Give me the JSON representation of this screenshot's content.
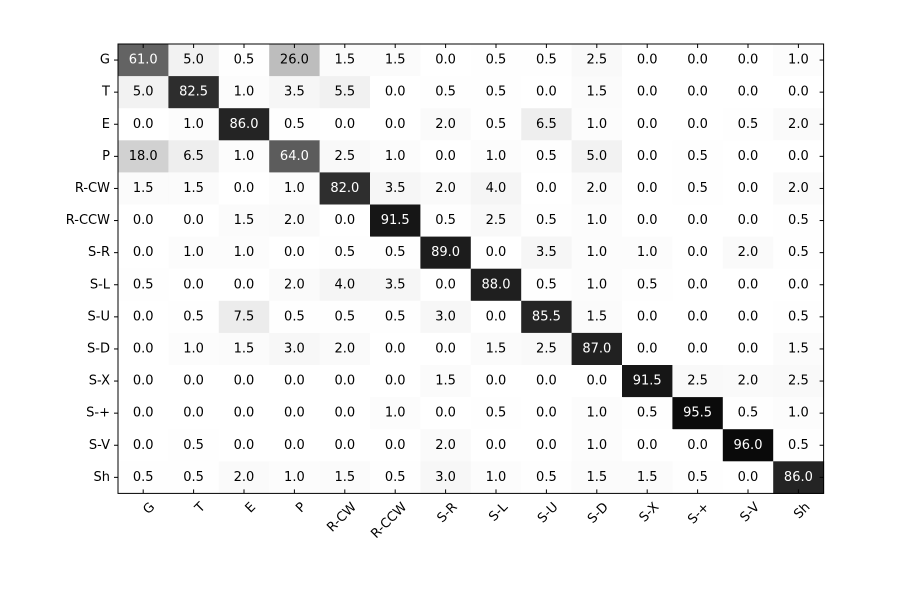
{
  "chart_data": {
    "type": "heatmap",
    "title": "",
    "xlabel": "",
    "ylabel": "",
    "colormap": "grayscale (white = 0, black = max)",
    "value_range": [
      0,
      100
    ],
    "x_categories": [
      "G",
      "T",
      "E",
      "P",
      "R-CW",
      "R-CCW",
      "S-R",
      "S-L",
      "S-U",
      "S-D",
      "S-X",
      "S-+",
      "S-V",
      "Sh"
    ],
    "y_categories": [
      "G",
      "T",
      "E",
      "P",
      "R-CW",
      "R-CCW",
      "S-R",
      "S-L",
      "S-U",
      "S-D",
      "S-X",
      "S-+",
      "S-V",
      "Sh"
    ],
    "values": [
      [
        61.0,
        5.0,
        0.5,
        26.0,
        1.5,
        1.5,
        0.0,
        0.5,
        0.5,
        2.5,
        0.0,
        0.0,
        0.0,
        1.0
      ],
      [
        5.0,
        82.5,
        1.0,
        3.5,
        5.5,
        0.0,
        0.5,
        0.5,
        0.0,
        1.5,
        0.0,
        0.0,
        0.0,
        0.0
      ],
      [
        0.0,
        1.0,
        86.0,
        0.5,
        0.0,
        0.0,
        2.0,
        0.5,
        6.5,
        1.0,
        0.0,
        0.0,
        0.5,
        2.0
      ],
      [
        18.0,
        6.5,
        1.0,
        64.0,
        2.5,
        1.0,
        0.0,
        1.0,
        0.5,
        5.0,
        0.0,
        0.5,
        0.0,
        0.0
      ],
      [
        1.5,
        1.5,
        0.0,
        1.0,
        82.0,
        3.5,
        2.0,
        4.0,
        0.0,
        2.0,
        0.0,
        0.5,
        0.0,
        2.0
      ],
      [
        0.0,
        0.0,
        1.5,
        2.0,
        0.0,
        91.5,
        0.5,
        2.5,
        0.5,
        1.0,
        0.0,
        0.0,
        0.0,
        0.5
      ],
      [
        0.0,
        1.0,
        1.0,
        0.0,
        0.5,
        0.5,
        89.0,
        0.0,
        3.5,
        1.0,
        1.0,
        0.0,
        2.0,
        0.5
      ],
      [
        0.5,
        0.0,
        0.0,
        2.0,
        4.0,
        3.5,
        0.0,
        88.0,
        0.5,
        1.0,
        0.5,
        0.0,
        0.0,
        0.0
      ],
      [
        0.0,
        0.5,
        7.5,
        0.5,
        0.5,
        0.5,
        3.0,
        0.0,
        85.5,
        1.5,
        0.0,
        0.0,
        0.0,
        0.5
      ],
      [
        0.0,
        1.0,
        1.5,
        3.0,
        2.0,
        0.0,
        0.0,
        1.5,
        2.5,
        87.0,
        0.0,
        0.0,
        0.0,
        1.5
      ],
      [
        0.0,
        0.0,
        0.0,
        0.0,
        0.0,
        0.0,
        1.5,
        0.0,
        0.0,
        0.0,
        91.5,
        2.5,
        2.0,
        2.5
      ],
      [
        0.0,
        0.0,
        0.0,
        0.0,
        0.0,
        1.0,
        0.0,
        0.5,
        0.0,
        1.0,
        0.5,
        95.5,
        0.5,
        1.0
      ],
      [
        0.0,
        0.5,
        0.0,
        0.0,
        0.0,
        0.0,
        2.0,
        0.0,
        0.0,
        1.0,
        0.0,
        0.0,
        96.0,
        0.5
      ],
      [
        0.5,
        0.5,
        2.0,
        1.0,
        1.5,
        0.5,
        3.0,
        1.0,
        0.5,
        1.5,
        1.5,
        0.5,
        0.0,
        86.0
      ]
    ],
    "x_tick_rotation": "45 degrees",
    "grid": false,
    "legend": "none"
  }
}
